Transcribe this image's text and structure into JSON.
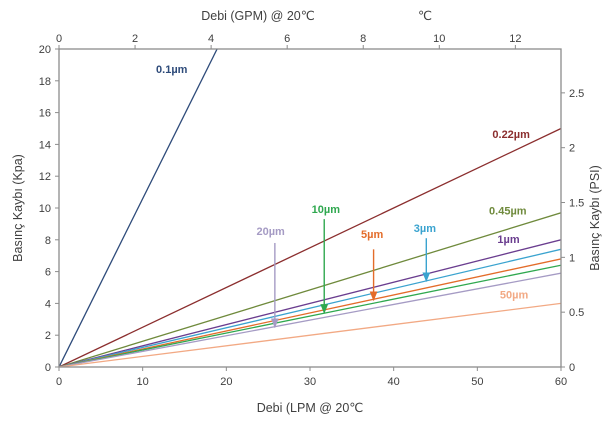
{
  "chart_data": {
    "type": "line",
    "xlabel_bottom": "Debi (LPM @ 20℃",
    "xlabel_top": "Debi (GPM) @ 20℃",
    "xlabel_top_unit": "℃",
    "ylabel_left": "Basınç Kaybı (Kpa)",
    "ylabel_right": "Basınç Kaybı (PSI)",
    "xlim_bottom": [
      0,
      60
    ],
    "xlim_top": [
      0,
      13.2
    ],
    "ylim_left": [
      0,
      20
    ],
    "ylim_right": [
      0,
      2.9
    ],
    "x_ticks_bottom": [
      "0",
      "10",
      "20",
      "30",
      "40",
      "50",
      "60"
    ],
    "x_ticks_top": [
      "0",
      "2",
      "4",
      "6",
      "8",
      "10",
      "12"
    ],
    "y_ticks_left": [
      "0",
      "2",
      "4",
      "6",
      "8",
      "10",
      "12",
      "14",
      "16",
      "18",
      "20"
    ],
    "y_ticks_right": [
      "0",
      "0.5",
      "1",
      "1.5",
      "2",
      "2.5"
    ],
    "grid": false,
    "series": [
      {
        "name": "0.1µm",
        "color": "#2e4b7a",
        "x": [
          0,
          18.9
        ],
        "y": [
          0,
          20
        ]
      },
      {
        "name": "0.22µm",
        "color": "#8b2e2e",
        "x": [
          0,
          60
        ],
        "y": [
          0,
          15
        ]
      },
      {
        "name": "0.45µm",
        "color": "#6f8a3c",
        "x": [
          0,
          60
        ],
        "y": [
          0,
          9.7
        ]
      },
      {
        "name": "1µm",
        "color": "#6a3d8f",
        "x": [
          0,
          60
        ],
        "y": [
          0,
          8.0
        ]
      },
      {
        "name": "3µm",
        "color": "#3aa3cf",
        "x": [
          0,
          60
        ],
        "y": [
          0,
          7.4
        ]
      },
      {
        "name": "5µm",
        "color": "#e36c2a",
        "x": [
          0,
          60
        ],
        "y": [
          0,
          6.8
        ]
      },
      {
        "name": "10µm",
        "color": "#2fa84f",
        "x": [
          0,
          60
        ],
        "y": [
          0,
          6.4
        ]
      },
      {
        "name": "20µm",
        "color": "#a59bc4",
        "x": [
          0,
          60
        ],
        "y": [
          0,
          5.9
        ]
      },
      {
        "name": "50µm",
        "color": "#f2a984",
        "x": [
          0,
          60
        ],
        "y": [
          0,
          4.0
        ]
      }
    ],
    "labels": [
      {
        "series": "0.1µm",
        "x": 11.6,
        "y": 18.5
      },
      {
        "series": "0.22µm",
        "x": 51.8,
        "y": 14.4
      },
      {
        "series": "0.45µm",
        "x": 51.4,
        "y": 9.6
      },
      {
        "series": "1µm",
        "x": 52.4,
        "y": 7.8
      },
      {
        "series": "3µm",
        "x": 42.4,
        "y": 8.5
      },
      {
        "series": "5µm",
        "x": 36.1,
        "y": 8.1
      },
      {
        "series": "10µm",
        "x": 30.2,
        "y": 9.7
      },
      {
        "series": "20µm",
        "x": 23.6,
        "y": 8.3
      },
      {
        "series": "50µm",
        "x": 52.7,
        "y": 4.3
      }
    ],
    "arrows": [
      {
        "series": "3µm",
        "x": 43.9,
        "y_from": 8.1,
        "y_to": 5.4
      },
      {
        "series": "5µm",
        "x": 37.6,
        "y_from": 7.4,
        "y_to": 4.2
      },
      {
        "series": "10µm",
        "x": 31.7,
        "y_from": 9.3,
        "y_to": 3.4
      },
      {
        "series": "20µm",
        "x": 25.8,
        "y_from": 7.8,
        "y_to": 2.5
      }
    ]
  }
}
